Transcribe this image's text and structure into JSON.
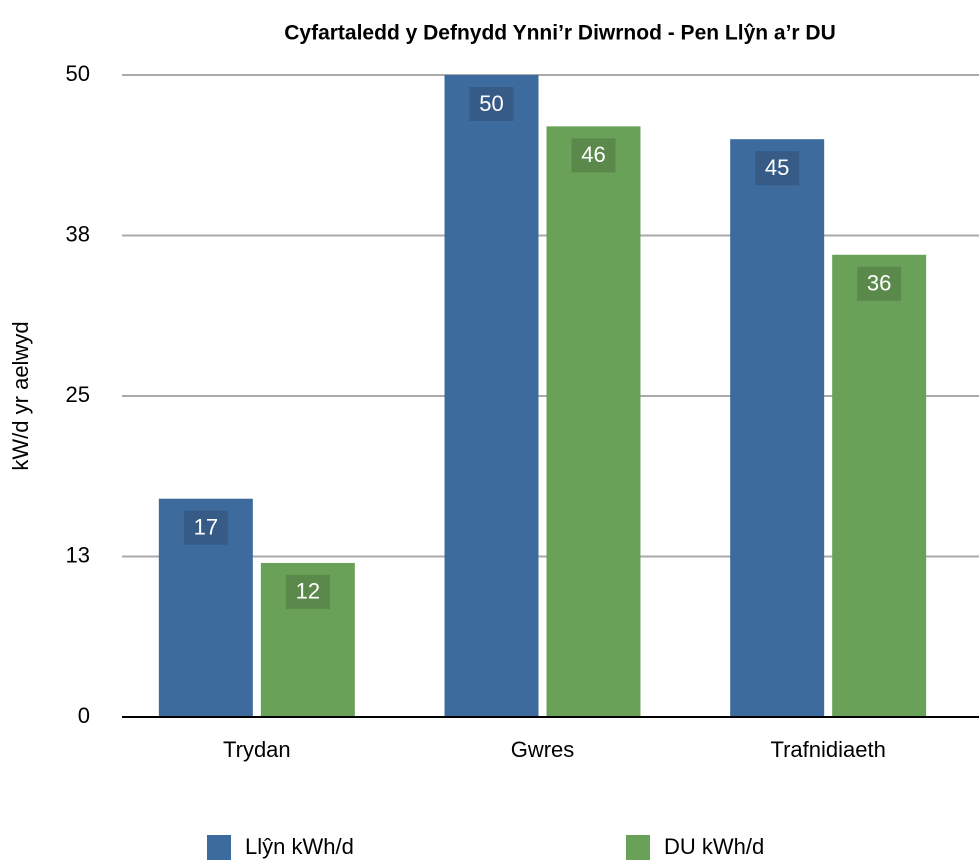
{
  "chart_data": {
    "type": "bar",
    "title": "Cyfartaledd y Defnydd Ynni’r Diwrnod - Pen Llŷn a’r DU",
    "y_label": "kW/d yr aelwyd",
    "categories": [
      "Trydan",
      "Gwres",
      "Trafnidiaeth"
    ],
    "series": [
      {
        "name": "Llŷn kWh/d",
        "color": "#3e6b9e",
        "values": [
          17,
          50,
          45
        ]
      },
      {
        "name": "DU kWh/d",
        "color": "#6aa158",
        "values": [
          12,
          46,
          36
        ]
      }
    ],
    "ylim": [
      0,
      50
    ],
    "yticks": [
      0,
      {
        "value": 12.5,
        "label": "13"
      },
      25,
      {
        "value": 37.5,
        "label": "38"
      },
      50
    ],
    "grid": true,
    "legend": "bottom"
  }
}
